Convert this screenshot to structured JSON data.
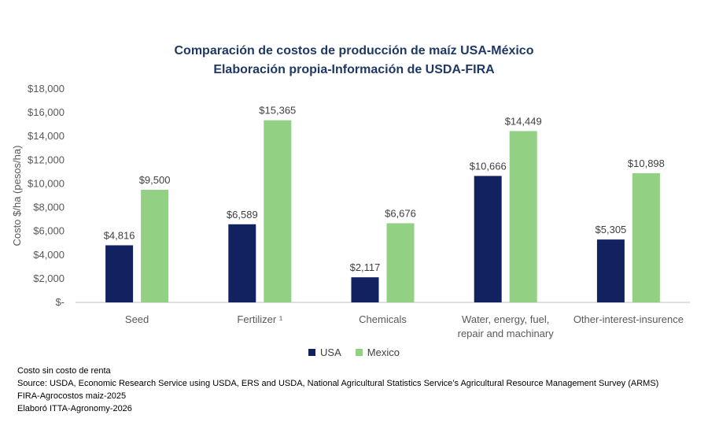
{
  "chart_data": {
    "type": "bar",
    "title": "Comparación de costos de producción de maíz USA-México",
    "subtitle": "Elaboración propia-Información de USDA-FIRA",
    "xlabel": "",
    "ylabel": "Costo $/ha (pesos/ha)",
    "ylim": [
      0,
      18000
    ],
    "yticks": [
      0,
      2000,
      4000,
      6000,
      8000,
      10000,
      12000,
      14000,
      16000,
      18000
    ],
    "ytick_labels": [
      "$-",
      "$2,000",
      "$4,000",
      "$6,000",
      "$8,000",
      "$10,000",
      "$12,000",
      "$14,000",
      "$16,000",
      "$18,000"
    ],
    "categories": [
      [
        "Seed"
      ],
      [
        "Fertilizer ¹"
      ],
      [
        "Chemicals"
      ],
      [
        "Water, energy, fuel,",
        "repair and machinary"
      ],
      [
        "Other-interest-insurence"
      ]
    ],
    "series": [
      {
        "name": "USA",
        "color": "#12215f",
        "values": [
          4816,
          6589,
          2117,
          10666,
          5305
        ],
        "labels": [
          "$4,816",
          "$6,589",
          "$2,117",
          "$10,666",
          "$5,305"
        ]
      },
      {
        "name": "Mexico",
        "color": "#92d183",
        "values": [
          9500,
          15365,
          6676,
          14449,
          10898
        ],
        "labels": [
          "$9,500",
          "$15,365",
          "$6,676",
          "$14,449",
          "$10,898"
        ]
      }
    ],
    "grid": false,
    "legend": "bottom-center"
  },
  "notes": {
    "line1": "Costo sin costo de renta",
    "line2": "Source: USDA, Economic Research Service using USDA, ERS and USDA, National Agricultural Statistics Service’s Agricultural Resource Management Survey (ARMS)",
    "line3": "FIRA-Agrocostos maiz-2025",
    "line4": "Elaboró ITTA-Agronomy-2026"
  }
}
